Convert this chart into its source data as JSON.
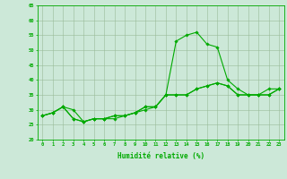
{
  "x": [
    0,
    1,
    2,
    3,
    4,
    5,
    6,
    7,
    8,
    9,
    10,
    11,
    12,
    13,
    14,
    15,
    16,
    17,
    18,
    19,
    20,
    21,
    22,
    23
  ],
  "line1": [
    28,
    29,
    31,
    30,
    26,
    27,
    27,
    27,
    28,
    29,
    30,
    31,
    35,
    35,
    35,
    37,
    38,
    39,
    38,
    35,
    35,
    35,
    37,
    37
  ],
  "line2": [
    28,
    29,
    31,
    27,
    26,
    27,
    27,
    28,
    28,
    29,
    31,
    31,
    35,
    53,
    55,
    56,
    52,
    51,
    40,
    37,
    35,
    35,
    35,
    37
  ],
  "line3": [
    28,
    29,
    31,
    27,
    26,
    27,
    27,
    28,
    28,
    29,
    31,
    31,
    35,
    35,
    35,
    37,
    38,
    39,
    38,
    35,
    35,
    35,
    35,
    37
  ],
  "xlim": [
    -0.5,
    23.5
  ],
  "ylim": [
    20,
    65
  ],
  "yticks": [
    20,
    25,
    30,
    35,
    40,
    45,
    50,
    55,
    60,
    65
  ],
  "xticks": [
    0,
    1,
    2,
    3,
    4,
    5,
    6,
    7,
    8,
    9,
    10,
    11,
    12,
    13,
    14,
    15,
    16,
    17,
    18,
    19,
    20,
    21,
    22,
    23
  ],
  "xlabel": "Humidité relative (%)",
  "line_color": "#00aa00",
  "bg_color": "#cce8d8",
  "grid_color": "#99bb99",
  "marker": "D",
  "marker_size": 1.8,
  "linewidth": 0.8,
  "tick_fontsize": 4.0,
  "xlabel_fontsize": 5.5,
  "ylabel_fontsize": 5.0
}
